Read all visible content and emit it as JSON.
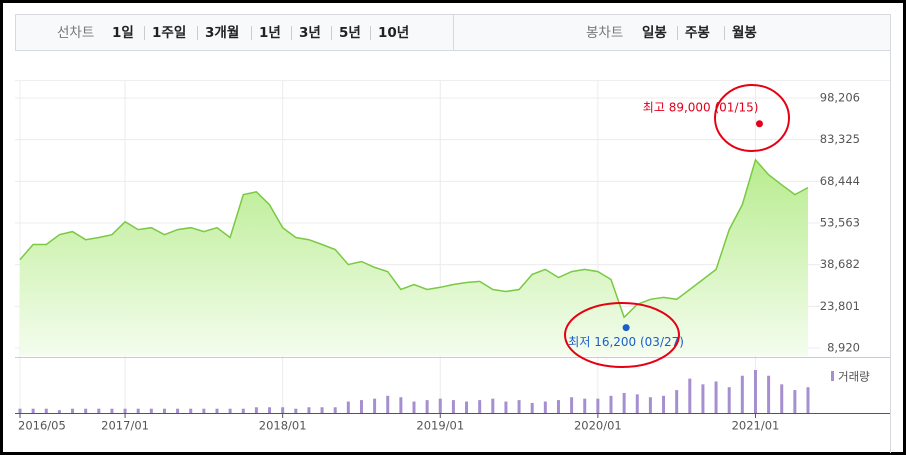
{
  "toolbar": {
    "line_label": "선차트",
    "periods": [
      "1일",
      "1주일",
      "3개월",
      "1년",
      "3년",
      "5년",
      "10년"
    ],
    "selected_period": 5,
    "candle_label": "봉차트",
    "candle_periods": [
      "일봉",
      "주봉",
      "월봉"
    ]
  },
  "chart_data": {
    "type": "line",
    "categories": [
      "2016/05",
      null,
      null,
      null,
      null,
      null,
      null,
      null,
      "2017/01",
      null,
      null,
      null,
      null,
      null,
      null,
      null,
      null,
      null,
      null,
      null,
      "2018/01",
      null,
      null,
      null,
      null,
      null,
      null,
      null,
      null,
      null,
      null,
      null,
      "2019/01",
      null,
      null,
      null,
      null,
      null,
      null,
      null,
      null,
      null,
      null,
      null,
      "2020/01",
      null,
      null,
      null,
      null,
      null,
      null,
      null,
      null,
      null,
      null,
      null,
      "2021/01",
      null,
      null,
      null,
      null
    ],
    "values": [
      40500,
      45900,
      45900,
      49400,
      50500,
      47600,
      48400,
      49400,
      54000,
      51200,
      51900,
      49400,
      51200,
      51900,
      50500,
      51900,
      48400,
      63700,
      64700,
      60100,
      51900,
      48400,
      47600,
      45900,
      44100,
      38700,
      39800,
      37700,
      36200,
      29800,
      31600,
      29800,
      30600,
      31600,
      32300,
      32700,
      29800,
      29100,
      29800,
      35200,
      37000,
      34100,
      36200,
      37000,
      36200,
      33400,
      19900,
      24500,
      26300,
      27000,
      26300,
      29800,
      33400,
      37000,
      51200,
      60100,
      76100,
      70800,
      67200,
      63700,
      66200
    ],
    "color": "#7ac943",
    "ylim": [
      8920,
      98206
    ],
    "yticks": [
      {
        "value": 8920,
        "label": "8,920"
      },
      {
        "value": 23801,
        "label": "23,801"
      },
      {
        "value": 38682,
        "label": "38,682"
      },
      {
        "value": 53563,
        "label": "53,563"
      },
      {
        "value": 68444,
        "label": "68,444"
      },
      {
        "value": 83325,
        "label": "83,325"
      },
      {
        "value": 98206,
        "label": "98,206"
      }
    ],
    "grid": true,
    "high": {
      "text": "최고 89,000 (01/15)",
      "value": 89000,
      "color": "#e0001b"
    },
    "low": {
      "text": "최저 16,200 (03/27)",
      "value": 16200,
      "color": "#1a5fc8"
    },
    "volume": {
      "name": "거래량",
      "color": "#a68fd0",
      "values": [
        3,
        3,
        3,
        2,
        3,
        3,
        3,
        3,
        3,
        3,
        3,
        3,
        3,
        3,
        3,
        3,
        3,
        3,
        4,
        4,
        4,
        3,
        4,
        4,
        4,
        8,
        9,
        10,
        12,
        11,
        8,
        9,
        10,
        9,
        8,
        9,
        10,
        8,
        9,
        7,
        8,
        9,
        11,
        10,
        10,
        12,
        14,
        13,
        11,
        12,
        16,
        24,
        20,
        22,
        18,
        26,
        30,
        26,
        20,
        16,
        18
      ]
    }
  }
}
